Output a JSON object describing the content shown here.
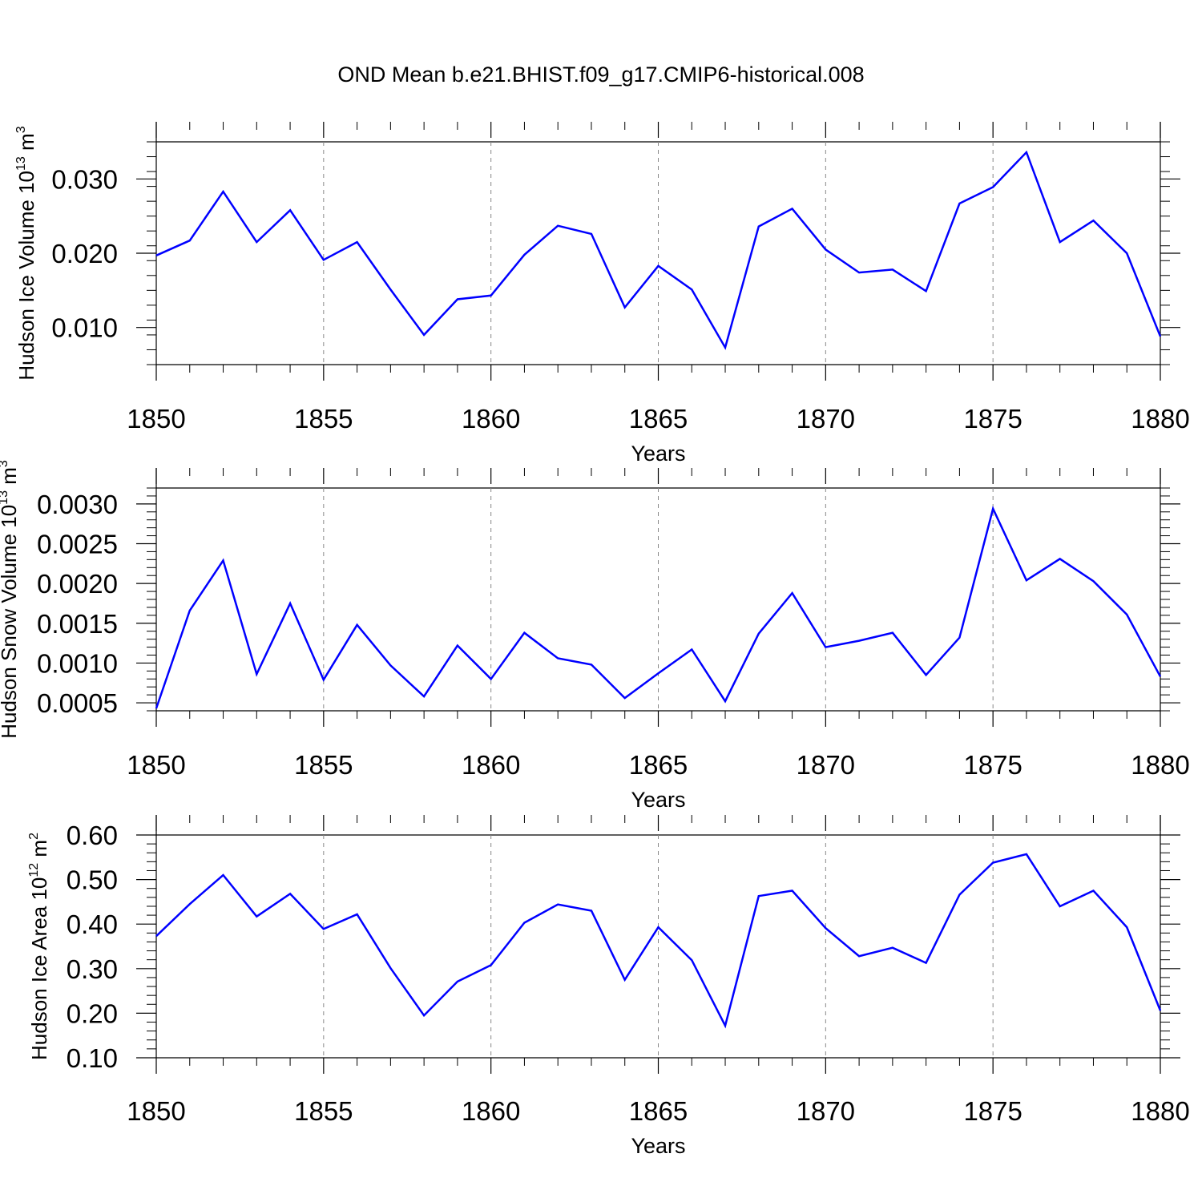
{
  "title": "OND Mean b.e21.BHIST.f09_g17.CMIP6-historical.008",
  "line_color": "#0000ff",
  "chart_data": [
    {
      "type": "line",
      "ylabel": "Hudson Ice Volume 10",
      "ylabel_exp": "13",
      "ylabel_unit": "m",
      "ylabel_unit_exp": "3",
      "xlabel": "Years",
      "xlim": [
        1850,
        1880
      ],
      "ylim": [
        0.005,
        0.035
      ],
      "yticks": [
        0.01,
        0.02,
        0.03
      ],
      "ytick_labels": [
        "0.010",
        "0.020",
        "0.030"
      ],
      "xticks": [
        1850,
        1855,
        1860,
        1865,
        1870,
        1875,
        1880
      ],
      "xtick_labels": [
        "1850",
        "1855",
        "1860",
        "1865",
        "1870",
        "1875",
        "1880"
      ],
      "x": [
        1850,
        1851,
        1852,
        1853,
        1854,
        1855,
        1856,
        1857,
        1858,
        1859,
        1860,
        1861,
        1862,
        1863,
        1864,
        1865,
        1866,
        1867,
        1868,
        1869,
        1870,
        1871,
        1872,
        1873,
        1874,
        1875,
        1876,
        1877,
        1878,
        1879,
        1880
      ],
      "values": [
        0.0197,
        0.0217,
        0.0283,
        0.0215,
        0.0258,
        0.0191,
        0.0215,
        0.0151,
        0.009,
        0.0138,
        0.0143,
        0.0198,
        0.0237,
        0.0226,
        0.0127,
        0.0183,
        0.0151,
        0.0073,
        0.0236,
        0.026,
        0.0205,
        0.0174,
        0.0178,
        0.0149,
        0.0267,
        0.0289,
        0.0336,
        0.0215,
        0.0244,
        0.02,
        0.0088
      ]
    },
    {
      "type": "line",
      "ylabel": "Hudson Snow Volume 10",
      "ylabel_exp": "13",
      "ylabel_unit": "m",
      "ylabel_unit_exp": "3",
      "xlabel": "Years",
      "xlim": [
        1850,
        1880
      ],
      "ylim": [
        0.0004,
        0.0032
      ],
      "yticks": [
        0.0005,
        0.001,
        0.0015,
        0.002,
        0.0025,
        0.003
      ],
      "ytick_labels": [
        "0.0005",
        "0.0010",
        "0.0015",
        "0.0020",
        "0.0025",
        "0.0030"
      ],
      "xticks": [
        1850,
        1855,
        1860,
        1865,
        1870,
        1875,
        1880
      ],
      "xtick_labels": [
        "1850",
        "1855",
        "1860",
        "1865",
        "1870",
        "1875",
        "1880"
      ],
      "x": [
        1850,
        1851,
        1852,
        1853,
        1854,
        1855,
        1856,
        1857,
        1858,
        1859,
        1860,
        1861,
        1862,
        1863,
        1864,
        1865,
        1866,
        1867,
        1868,
        1869,
        1870,
        1871,
        1872,
        1873,
        1874,
        1875,
        1876,
        1877,
        1878,
        1879,
        1880
      ],
      "values": [
        0.00043,
        0.00166,
        0.00229,
        0.00086,
        0.00175,
        0.00079,
        0.00148,
        0.00097,
        0.00058,
        0.00122,
        0.0008,
        0.00138,
        0.00106,
        0.00098,
        0.00056,
        0.00087,
        0.00117,
        0.00052,
        0.00137,
        0.00188,
        0.0012,
        0.00128,
        0.00138,
        0.00085,
        0.00132,
        0.00294,
        0.00204,
        0.00231,
        0.00203,
        0.00161,
        0.00083
      ]
    },
    {
      "type": "line",
      "ylabel": "Hudson Ice Area 10",
      "ylabel_exp": "12",
      "ylabel_unit": "m",
      "ylabel_unit_exp": "2",
      "xlabel": "Years",
      "xlim": [
        1850,
        1880
      ],
      "ylim": [
        0.1,
        0.6
      ],
      "yticks": [
        0.1,
        0.2,
        0.3,
        0.4,
        0.5,
        0.6
      ],
      "ytick_labels": [
        "0.10",
        "0.20",
        "0.30",
        "0.40",
        "0.50",
        "0.60"
      ],
      "xticks": [
        1850,
        1855,
        1860,
        1865,
        1870,
        1875,
        1880
      ],
      "xtick_labels": [
        "1850",
        "1855",
        "1860",
        "1865",
        "1870",
        "1875",
        "1880"
      ],
      "x": [
        1850,
        1851,
        1852,
        1853,
        1854,
        1855,
        1856,
        1857,
        1858,
        1859,
        1860,
        1861,
        1862,
        1863,
        1864,
        1865,
        1866,
        1867,
        1868,
        1869,
        1870,
        1871,
        1872,
        1873,
        1874,
        1875,
        1876,
        1877,
        1878,
        1879,
        1880
      ],
      "values": [
        0.373,
        0.445,
        0.51,
        0.417,
        0.468,
        0.389,
        0.422,
        0.301,
        0.195,
        0.271,
        0.308,
        0.403,
        0.444,
        0.43,
        0.275,
        0.393,
        0.319,
        0.172,
        0.463,
        0.475,
        0.391,
        0.328,
        0.347,
        0.313,
        0.466,
        0.538,
        0.557,
        0.44,
        0.475,
        0.393,
        0.206
      ]
    }
  ]
}
